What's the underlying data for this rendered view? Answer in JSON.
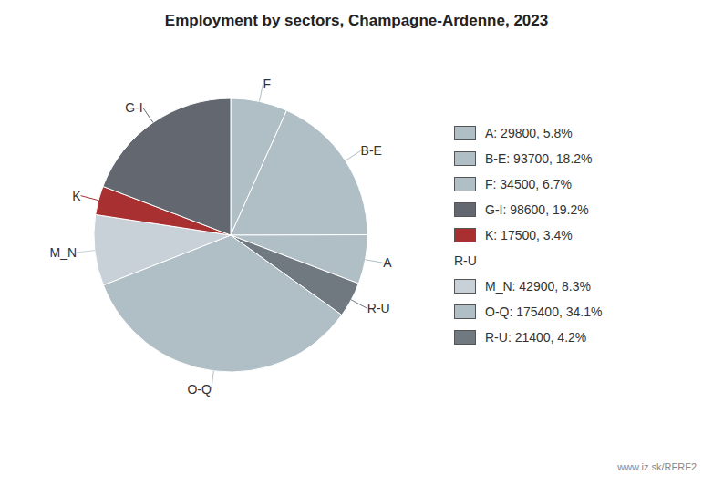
{
  "chart_data": {
    "type": "pie",
    "title": "Employment by sectors, Champagne-Ardenne, 2023",
    "categories": [
      "F",
      "B-E",
      "A",
      "R-U",
      "O-Q",
      "M_N",
      "K",
      "G-I"
    ],
    "values": [
      34500,
      93700,
      29800,
      21400,
      175400,
      42900,
      17500,
      98600
    ],
    "colors": [
      "#b0bec5",
      "#b0bec5",
      "#b0bec5",
      "#707880",
      "#b0bec5",
      "#c8d0d8",
      "#a83030",
      "#636870"
    ],
    "legend": "right",
    "legend_entries": [
      {
        "label": "A: 29800, 5.8%",
        "color": "#b0bec5"
      },
      {
        "label": "B-E: 93700, 18.2%",
        "color": "#b0bec5"
      },
      {
        "label": "F: 34500, 6.7%",
        "color": "#b0bec5"
      },
      {
        "label": "G-I: 98600, 19.2%",
        "color": "#636870"
      },
      {
        "label": "K: 17500, 3.4%",
        "color": "#a83030"
      },
      {
        "label": "R-U",
        "color": null
      },
      {
        "label": "M_N: 42900, 8.3%",
        "color": "#c8d0d8"
      },
      {
        "label": "O-Q: 175400, 34.1%",
        "color": "#b0bec5"
      },
      {
        "label": "R-U: 21400, 4.2%",
        "color": "#707880"
      }
    ],
    "annotations": [
      "www.iz.sk/RFRF2"
    ]
  }
}
